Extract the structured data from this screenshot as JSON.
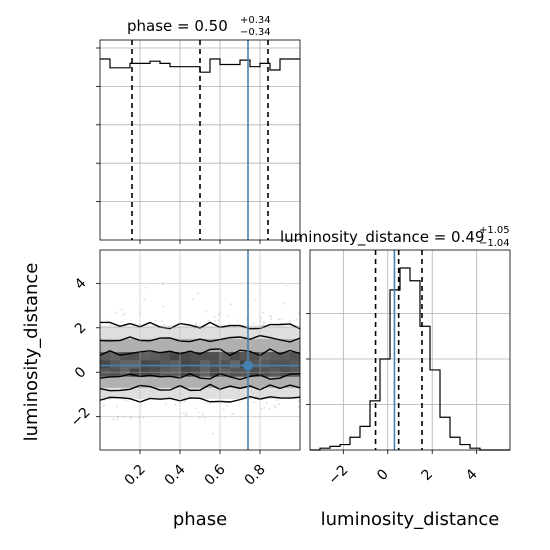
{
  "chart_data": [
    {
      "type": "histogram",
      "panel": "phase-marginal",
      "title_main": "phase = 0.50",
      "title_sup": "+0.34",
      "title_sub": "−0.34",
      "xlim": [
        0.0,
        1.0
      ],
      "bin_heights": [
        0.94,
        0.86,
        0.86,
        0.9,
        0.9,
        0.92,
        0.9,
        0.87,
        0.87,
        0.87,
        0.82,
        0.94,
        0.89,
        0.89,
        0.93,
        0.87,
        0.9,
        0.84,
        0.94,
        0.94
      ],
      "quantiles": [
        0.16,
        0.5,
        0.84
      ],
      "truth": 0.74,
      "grid": true
    },
    {
      "type": "histogram",
      "panel": "luminosity-distance-marginal",
      "title_main": "luminosity_distance = 0.49",
      "title_sup": "+1.05",
      "title_sub": "−1.04",
      "xlim": [
        -3.5,
        5.5
      ],
      "xticks": [
        -2,
        0,
        2,
        4
      ],
      "xtick_labels": [
        "−2",
        "0",
        "2",
        "4"
      ],
      "xlabel": "luminosity_distance",
      "bin_heights": [
        0.0,
        0.01,
        0.02,
        0.03,
        0.07,
        0.13,
        0.27,
        0.5,
        0.88,
        1.0,
        0.93,
        0.68,
        0.44,
        0.18,
        0.07,
        0.03,
        0.01,
        0.0,
        0.0,
        0.0
      ],
      "quantiles": [
        -0.55,
        0.49,
        1.54
      ],
      "truth": 0.3,
      "grid": true
    },
    {
      "type": "heatmap",
      "panel": "joint-2d-histogram",
      "xlim": [
        0.0,
        1.0
      ],
      "ylim": [
        -3.5,
        5.5
      ],
      "xticks": [
        0.2,
        0.4,
        0.6,
        0.8
      ],
      "xtick_labels": [
        "0.2",
        "0.4",
        "0.6",
        "0.8"
      ],
      "yticks": [
        -2,
        0,
        2,
        4
      ],
      "ytick_labels": [
        "−2",
        "0",
        "2",
        "4"
      ],
      "xlabel": "phase",
      "ylabel": "luminosity_distance",
      "truth": [
        0.74,
        0.3
      ],
      "contour_levels": [
        {
          "name": "inner",
          "lower": -0.2,
          "upper": 0.9
        },
        {
          "name": "middle",
          "lower": -0.7,
          "upper": 1.5
        },
        {
          "name": "outer",
          "lower": -1.2,
          "upper": 2.1
        }
      ],
      "grid": true
    }
  ],
  "colors": {
    "truth": "#4682b4",
    "hist": "#000000",
    "grid": "#b0b0b0",
    "points": "#999999"
  }
}
